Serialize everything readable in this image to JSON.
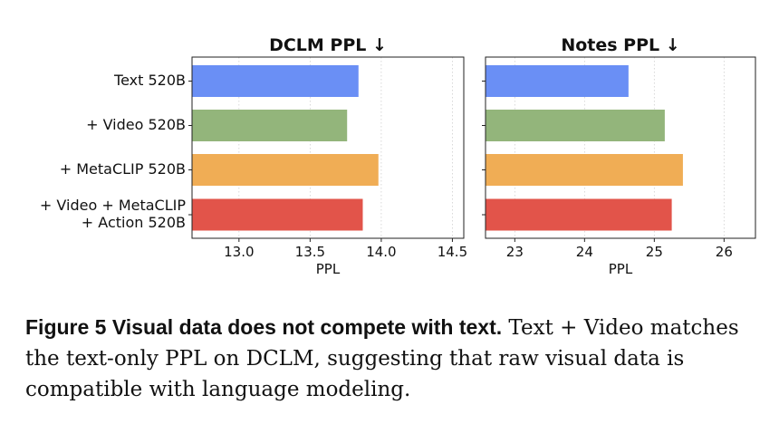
{
  "chart_data": [
    {
      "type": "bar",
      "orientation": "horizontal",
      "title": "DCLM PPL ↓",
      "xlabel": "PPL",
      "categories": [
        [
          "Text 520B"
        ],
        [
          "+ Video 520B"
        ],
        [
          "+ MetaCLIP 520B"
        ],
        [
          "+ Video + MetaCLIP",
          "+ Action 520B"
        ]
      ],
      "values": [
        13.84,
        13.76,
        13.98,
        13.87
      ],
      "xlim": [
        12.67,
        14.58
      ],
      "xticks": [
        13.0,
        13.5,
        14.0,
        14.5
      ],
      "xtick_labels": [
        "13.0",
        "13.5",
        "14.0",
        "14.5"
      ],
      "colors": [
        "#6a8ff5",
        "#93b57b",
        "#f0ad55",
        "#e2544a"
      ],
      "grid": "vertical dotted"
    },
    {
      "type": "bar",
      "orientation": "horizontal",
      "title": "Notes PPL ↓",
      "xlabel": "PPL",
      "categories": [
        [
          "Text 520B"
        ],
        [
          "+ Video 520B"
        ],
        [
          "+ MetaCLIP 520B"
        ],
        [
          "+ Video + MetaCLIP",
          "+ Action 520B"
        ]
      ],
      "values": [
        24.63,
        25.15,
        25.41,
        25.25
      ],
      "xlim": [
        22.58,
        26.45
      ],
      "xticks": [
        23,
        24,
        25,
        26
      ],
      "xtick_labels": [
        "23",
        "24",
        "25",
        "26"
      ],
      "colors": [
        "#6a8ff5",
        "#93b57b",
        "#f0ad55",
        "#e2544a"
      ],
      "grid": "vertical dotted"
    }
  ],
  "caption": {
    "lead": "Figure 5  Visual data does not compete with text.",
    "body": " Text + Video matches the text-only PPL on DCLM, suggesting that raw visual data is compatible with language modeling."
  }
}
